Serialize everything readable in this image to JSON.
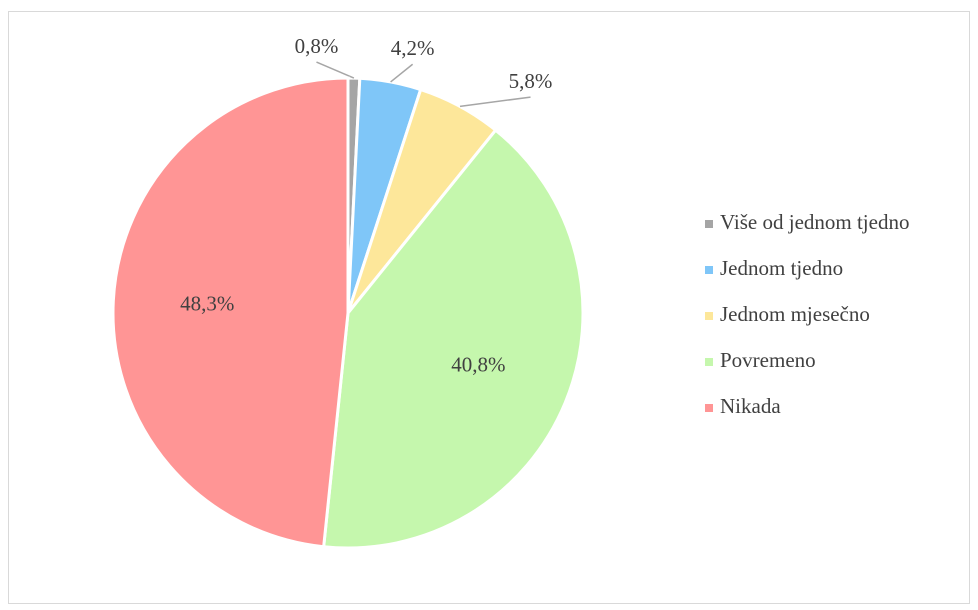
{
  "chart_data": {
    "type": "pie",
    "categories": [
      "Više od jednom tjedno",
      "Jednom tjedno",
      "Jednom mjesečno",
      "Povremeno",
      "Nikada"
    ],
    "values": [
      0.8,
      4.2,
      5.8,
      40.8,
      48.3
    ],
    "value_labels": [
      "0,8%",
      "4,2%",
      "5,8%",
      "40,8%",
      "48,3%"
    ],
    "colors": [
      "#a5a5a5",
      "#7fc6f8",
      "#fde79a",
      "#c5f7ad",
      "#ff9595"
    ],
    "legend": "right"
  }
}
